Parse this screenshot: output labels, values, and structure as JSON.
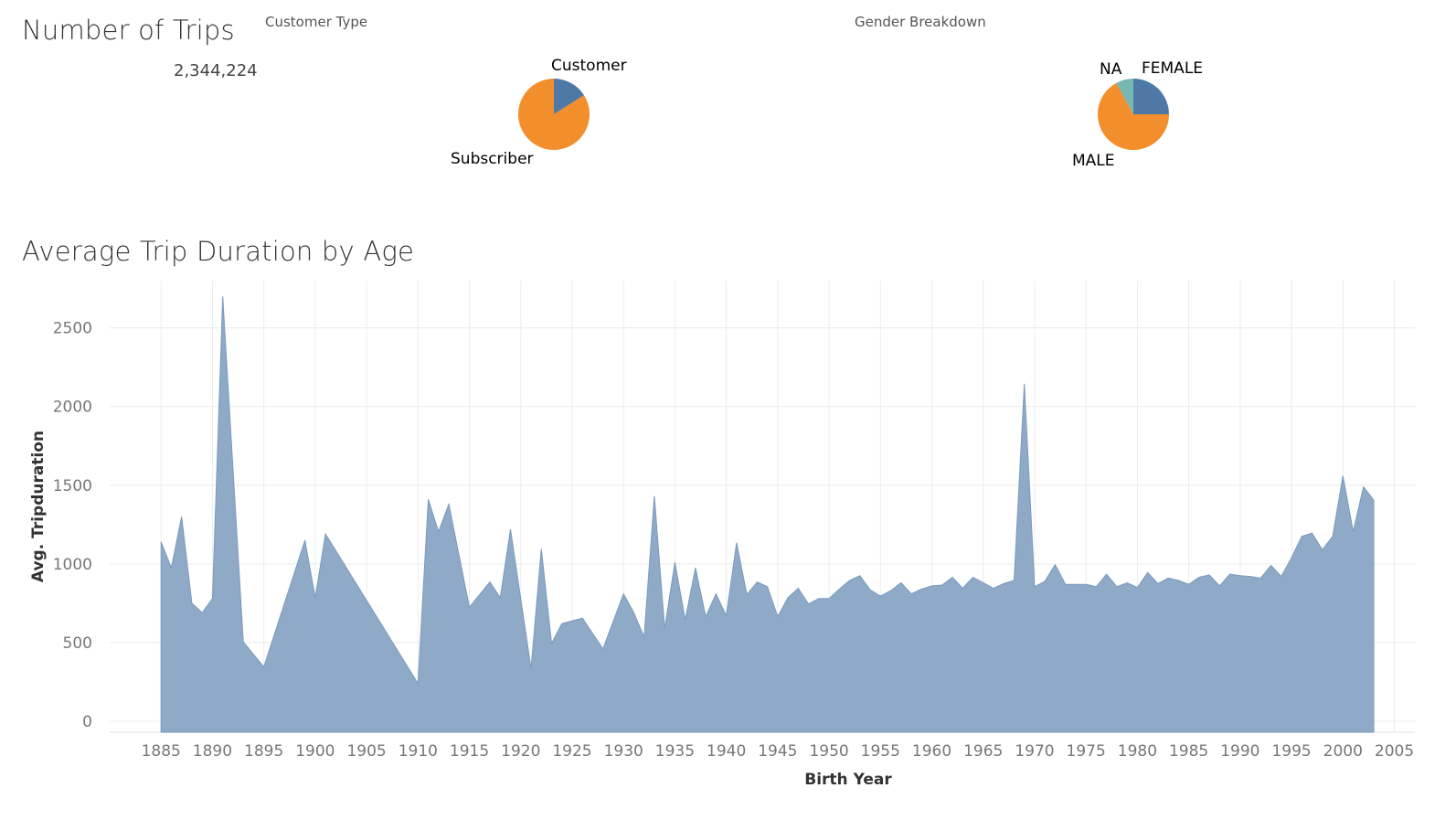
{
  "trips": {
    "title": "Number of Trips",
    "value": "2,344,224"
  },
  "customer_type": {
    "title": "Customer Type"
  },
  "gender": {
    "title": "Gender Breakdown"
  },
  "duration_title": "Average Trip Duration by Age",
  "colors": {
    "area": "#8eaac6",
    "area_stroke": "#7a9abd",
    "blue": "#4e79a7",
    "orange": "#f28e2b",
    "teal": "#76b7b2",
    "grid": "#ececec"
  },
  "chart_data": [
    {
      "type": "pie",
      "title": "Customer Type",
      "slices": [
        {
          "label": "Customer",
          "value": 16,
          "color": "#4e79a7"
        },
        {
          "label": "Subscriber",
          "value": 84,
          "color": "#f28e2b"
        }
      ]
    },
    {
      "type": "pie",
      "title": "Gender Breakdown",
      "slices": [
        {
          "label": "FEMALE",
          "value": 25,
          "color": "#4e79a7"
        },
        {
          "label": "MALE",
          "value": 67,
          "color": "#f28e2b"
        },
        {
          "label": "NA",
          "value": 8,
          "color": "#76b7b2"
        }
      ]
    },
    {
      "type": "area",
      "title": "Average Trip Duration by Age",
      "xlabel": "Birth Year",
      "ylabel": "Avg. Tripduration",
      "xlim": [
        1880,
        2007
      ],
      "ylim": [
        -70,
        2800
      ],
      "xticks": [
        1885,
        1890,
        1895,
        1900,
        1905,
        1910,
        1915,
        1920,
        1925,
        1930,
        1935,
        1940,
        1945,
        1950,
        1955,
        1960,
        1965,
        1970,
        1975,
        1980,
        1985,
        1990,
        1995,
        2000,
        2005
      ],
      "yticks": [
        0,
        500,
        1000,
        1500,
        2000,
        2500
      ],
      "grid": true,
      "x": [
        1885,
        1886,
        1887,
        1888,
        1889,
        1890,
        1891,
        1893,
        1895,
        1899,
        1900,
        1901,
        1910,
        1911,
        1912,
        1913,
        1915,
        1917,
        1918,
        1919,
        1921,
        1922,
        1923,
        1924,
        1926,
        1928,
        1930,
        1931,
        1932,
        1933,
        1934,
        1935,
        1936,
        1937,
        1938,
        1939,
        1940,
        1941,
        1942,
        1943,
        1944,
        1945,
        1946,
        1947,
        1948,
        1949,
        1950,
        1951,
        1952,
        1953,
        1954,
        1955,
        1956,
        1957,
        1958,
        1959,
        1960,
        1961,
        1962,
        1963,
        1964,
        1965,
        1966,
        1967,
        1968,
        1969,
        1970,
        1971,
        1972,
        1973,
        1974,
        1975,
        1976,
        1977,
        1978,
        1979,
        1980,
        1981,
        1982,
        1983,
        1984,
        1985,
        1986,
        1987,
        1988,
        1989,
        1990,
        1991,
        1992,
        1993,
        1994,
        1995,
        1996,
        1997,
        1998,
        1999,
        2000,
        2001,
        2002,
        2003
      ],
      "values": [
        1140,
        975,
        1300,
        750,
        690,
        780,
        2700,
        505,
        345,
        1150,
        785,
        1190,
        240,
        1410,
        1205,
        1380,
        725,
        885,
        785,
        1220,
        335,
        1095,
        495,
        620,
        655,
        460,
        810,
        690,
        535,
        1430,
        590,
        1010,
        645,
        975,
        665,
        810,
        670,
        1135,
        805,
        885,
        855,
        665,
        785,
        845,
        745,
        780,
        780,
        840,
        895,
        925,
        835,
        795,
        830,
        880,
        810,
        840,
        860,
        865,
        915,
        845,
        915,
        880,
        845,
        875,
        895,
        2145,
        855,
        890,
        995,
        870,
        870,
        870,
        855,
        935,
        855,
        880,
        850,
        945,
        875,
        910,
        895,
        870,
        915,
        930,
        860,
        935,
        925,
        920,
        910,
        990,
        920,
        1040,
        1175,
        1195,
        1090,
        1175,
        1560,
        1205,
        1490,
        1405
      ]
    }
  ]
}
